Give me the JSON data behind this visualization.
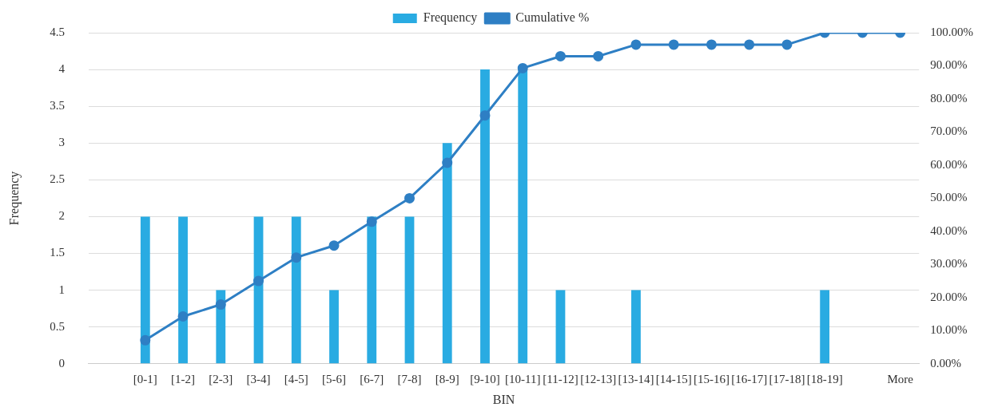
{
  "chart_data": {
    "type": "bar",
    "xlabel": "BIN",
    "ylabel": "Frequency",
    "categories": [
      null,
      "[0-1]",
      "[1-2]",
      "[2-3]",
      "[3-4]",
      "[4-5]",
      "[5-6]",
      "[6-7]",
      "[7-8]",
      "[8-9]",
      "[9-10]",
      "[10-11]",
      "[11-12]",
      "[12-13]",
      "[13-14]",
      "[14-15]",
      "[15-16]",
      "[16-17]",
      "[17-18]",
      "[18-19]",
      null,
      "More"
    ],
    "series": [
      {
        "name": "Frequency",
        "color": "#29abe2",
        "values": [
          null,
          2,
          2,
          1,
          2,
          2,
          1,
          2,
          2,
          3,
          4,
          4,
          1,
          0,
          1,
          0,
          0,
          0,
          0,
          1,
          0,
          0
        ]
      },
      {
        "name": "Cumulative %",
        "type": "line",
        "axis": "y2",
        "color": "#2e7fc4",
        "marker": "circle",
        "values": [
          null,
          7.1,
          14.3,
          17.9,
          25,
          32.1,
          35.7,
          42.9,
          50,
          60.7,
          75,
          89.3,
          92.9,
          92.9,
          96.4,
          96.4,
          96.4,
          96.4,
          96.4,
          100,
          100,
          100
        ]
      }
    ],
    "ylim": [
      0,
      4.5
    ],
    "yticks": [
      0,
      0.5,
      1,
      1.5,
      2,
      2.5,
      3,
      3.5,
      4,
      4.5
    ],
    "y2lim": [
      0,
      100
    ],
    "y2ticks": [
      {
        "value": 0,
        "label": "0.00%"
      },
      {
        "value": 10,
        "label": "10.00%"
      },
      {
        "value": 20,
        "label": "20.00%"
      },
      {
        "value": 30,
        "label": "30.00%"
      },
      {
        "value": 40,
        "label": "40.00%"
      },
      {
        "value": 50,
        "label": "50.00%"
      },
      {
        "value": 60,
        "label": "60.00%"
      },
      {
        "value": 70,
        "label": "70.00%"
      },
      {
        "value": 80,
        "label": "80.00%"
      },
      {
        "value": 90,
        "label": "90.00%"
      },
      {
        "value": 100,
        "label": "100.00%"
      }
    ],
    "grid": "y",
    "legend": "top"
  }
}
